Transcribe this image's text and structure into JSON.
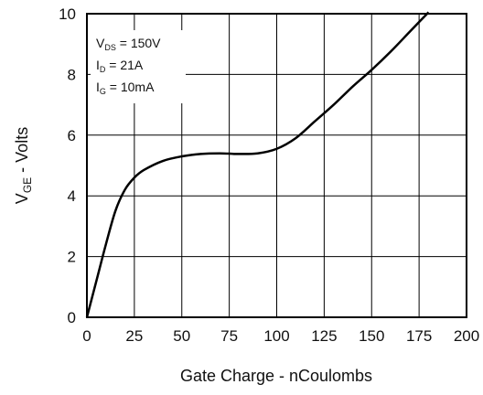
{
  "chart_data": {
    "type": "line",
    "xlabel": "Gate Charge - nCoulombs",
    "ylabel_main": "V",
    "ylabel_sub": "GE",
    "ylabel_suffix": " - Volts",
    "xlim": [
      0,
      200
    ],
    "ylim": [
      0,
      10
    ],
    "x_ticks": [
      0,
      25,
      50,
      75,
      100,
      125,
      150,
      175,
      200
    ],
    "y_ticks": [
      0,
      2,
      4,
      6,
      8,
      10
    ],
    "grid": true,
    "annotations": [
      {
        "main": "V",
        "sub": "DS",
        "rest": " = 150V"
      },
      {
        "main": "I",
        "sub": "D",
        "rest": " = 21A"
      },
      {
        "main": "I",
        "sub": "G",
        "rest": " = 10mA"
      }
    ],
    "series": [
      {
        "color": "#000000",
        "x": [
          0,
          5,
          10,
          15,
          20,
          25,
          30,
          40,
          50,
          60,
          70,
          80,
          90,
          100,
          110,
          120,
          130,
          140,
          150,
          160,
          170,
          180
        ],
        "y": [
          0,
          1.2,
          2.4,
          3.5,
          4.2,
          4.6,
          4.85,
          5.15,
          5.3,
          5.38,
          5.4,
          5.38,
          5.4,
          5.55,
          5.9,
          6.45,
          7.0,
          7.6,
          8.15,
          8.75,
          9.4,
          10.05
        ]
      }
    ]
  }
}
